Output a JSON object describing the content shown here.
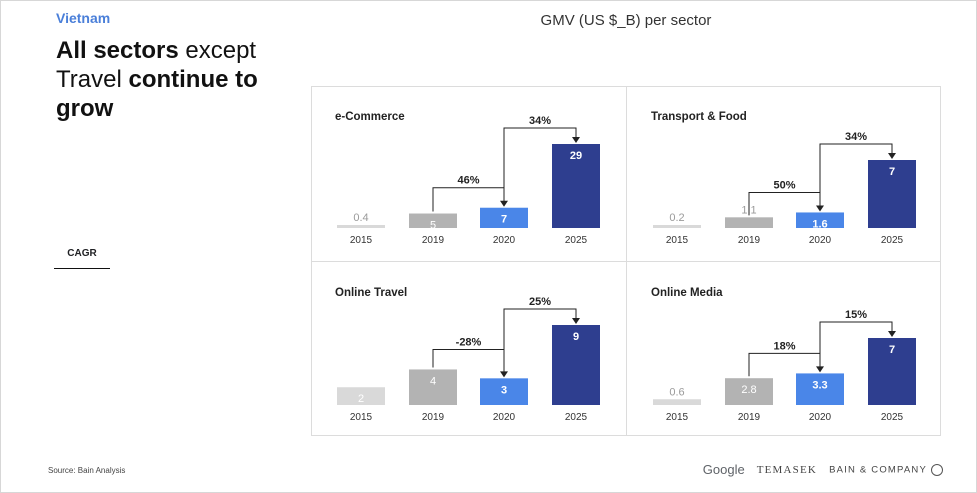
{
  "header": {
    "country": "Vietnam",
    "title_bold_1": "All sectors",
    "title_normal_1": "except",
    "title_normal_2": "Travel",
    "title_bold_2": "continue to grow"
  },
  "legend": {
    "cagr_label": "CAGR"
  },
  "chart_subtitle": "GMV (US $_B) per sector",
  "footer": {
    "source": "Source: Bain Analysis",
    "logos": [
      "Google",
      "TEMASEK",
      "BAIN & COMPANY"
    ]
  },
  "colors": {
    "bar_2015": "#d9d9d9",
    "bar_2019": "#b3b3b3",
    "bar_2020": "#4a86e8",
    "bar_2025": "#2e3e8f",
    "arrow": "#222222"
  },
  "chart_data": [
    {
      "type": "bar",
      "title": "e-Commerce",
      "categories": [
        "2015",
        "2019",
        "2020",
        "2025"
      ],
      "values": [
        0.4,
        5,
        7,
        29
      ],
      "value_labels": [
        "0.4",
        "5",
        "7",
        "29"
      ],
      "cagr": [
        {
          "from": "2019",
          "to": "2020",
          "label": "46%"
        },
        {
          "from": "2020",
          "to": "2025",
          "label": "34%"
        }
      ]
    },
    {
      "type": "bar",
      "title": "Transport & Food",
      "categories": [
        "2015",
        "2019",
        "2020",
        "2025"
      ],
      "values": [
        0.2,
        1.1,
        1.6,
        7
      ],
      "value_labels": [
        "0.2",
        "1.1",
        "1.6",
        "7"
      ],
      "cagr": [
        {
          "from": "2019",
          "to": "2020",
          "label": "50%"
        },
        {
          "from": "2020",
          "to": "2025",
          "label": "34%"
        }
      ]
    },
    {
      "type": "bar",
      "title": "Online Travel",
      "categories": [
        "2015",
        "2019",
        "2020",
        "2025"
      ],
      "values": [
        2,
        4,
        3,
        9
      ],
      "value_labels": [
        "2",
        "4",
        "3",
        "9"
      ],
      "cagr": [
        {
          "from": "2019",
          "to": "2020",
          "label": "-28%"
        },
        {
          "from": "2020",
          "to": "2025",
          "label": "25%"
        }
      ]
    },
    {
      "type": "bar",
      "title": "Online Media",
      "categories": [
        "2015",
        "2019",
        "2020",
        "2025"
      ],
      "values": [
        0.6,
        2.8,
        3.3,
        7
      ],
      "value_labels": [
        "0.6",
        "2.8",
        "3.3",
        "7"
      ],
      "cagr": [
        {
          "from": "2019",
          "to": "2020",
          "label": "18%"
        },
        {
          "from": "2020",
          "to": "2025",
          "label": "15%"
        }
      ]
    }
  ]
}
